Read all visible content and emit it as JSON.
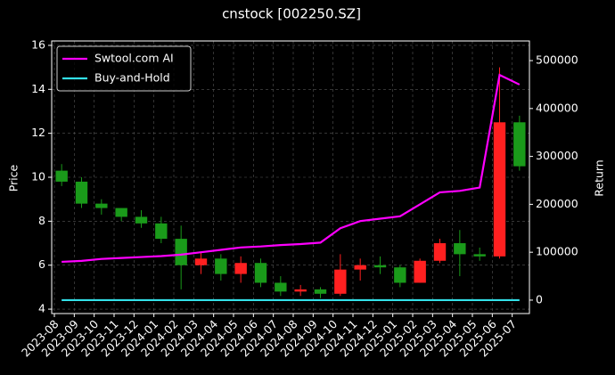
{
  "chart_data": {
    "type": "candlestick",
    "title": "cnstock [002250.SZ]",
    "ylabel": "Price",
    "y2label": "Return",
    "categories": [
      "2023-08",
      "2023-09",
      "2023-10",
      "2023-11",
      "2023-12",
      "2024-01",
      "2024-02",
      "2024-03",
      "2024-04",
      "2024-05",
      "2024-06",
      "2024-07",
      "2024-08",
      "2024-09",
      "2024-10",
      "2024-11",
      "2024-12",
      "2025-01",
      "2025-02",
      "2025-03",
      "2025-04",
      "2025-05",
      "2025-06",
      "2025-07"
    ],
    "candles": {
      "open": [
        10.3,
        9.8,
        8.8,
        8.6,
        8.2,
        7.9,
        7.2,
        6.0,
        6.3,
        5.6,
        6.1,
        5.2,
        4.8,
        4.9,
        4.7,
        5.8,
        6.0,
        5.9,
        5.2,
        6.2,
        7.0,
        6.5,
        6.4,
        12.5
      ],
      "high": [
        10.6,
        10.0,
        9.0,
        8.6,
        8.5,
        8.2,
        7.8,
        6.6,
        6.5,
        6.4,
        6.3,
        5.5,
        5.1,
        5.0,
        6.5,
        6.3,
        6.4,
        6.0,
        6.3,
        7.2,
        7.6,
        6.8,
        15.0,
        12.8
      ],
      "low": [
        9.6,
        8.6,
        8.3,
        8.0,
        7.7,
        7.0,
        4.9,
        5.6,
        5.3,
        5.2,
        5.0,
        4.6,
        4.6,
        4.5,
        4.6,
        5.3,
        5.6,
        5.0,
        5.2,
        6.1,
        5.5,
        6.2,
        6.3,
        10.3
      ],
      "close": [
        9.8,
        8.8,
        8.6,
        8.2,
        7.9,
        7.2,
        6.0,
        6.3,
        5.6,
        6.1,
        5.2,
        4.8,
        4.9,
        4.7,
        5.8,
        6.0,
        5.9,
        5.2,
        6.2,
        7.0,
        6.5,
        6.4,
        12.5,
        10.5
      ],
      "up_color": "#ff2020",
      "down_color": "#1a9a1a"
    },
    "series": [
      {
        "name": "Swtool.com AI",
        "color": "#ff00ff",
        "axis": "y2",
        "values": [
          80000,
          82000,
          86000,
          88000,
          90000,
          92000,
          95000,
          100000,
          105000,
          110000,
          112000,
          115000,
          117000,
          120000,
          150000,
          165000,
          170000,
          175000,
          200000,
          225000,
          228000,
          235000,
          470000,
          450000
        ]
      },
      {
        "name": "Buy-and-Hold",
        "color": "#33e0e8",
        "axis": "y2",
        "values": [
          0,
          0,
          0,
          0,
          0,
          0,
          0,
          0,
          0,
          0,
          0,
          0,
          0,
          0,
          0,
          0,
          0,
          0,
          0,
          0,
          0,
          0,
          0,
          0
        ]
      }
    ],
    "ylim": [
      3.8,
      16.2
    ],
    "yticks": [
      4,
      6,
      8,
      10,
      12,
      14,
      16
    ],
    "y2lim": [
      -28000,
      541000
    ],
    "y2ticks": [
      0,
      100000,
      200000,
      300000,
      400000,
      500000
    ],
    "grid": true,
    "legend": "upper-left"
  }
}
